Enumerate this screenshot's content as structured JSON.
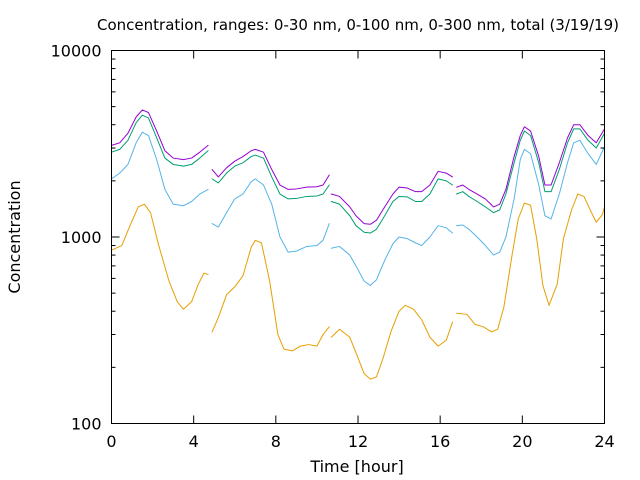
{
  "chart_data": {
    "type": "line",
    "title": "Concentration, ranges: 0-30 nm, 0-100 nm, 0-300 nm, total (3/19/19)",
    "xlabel": "Time [hour]",
    "ylabel": "Concentration",
    "xlim": [
      0,
      24
    ],
    "ylim": [
      100,
      10000
    ],
    "yscale": "log",
    "grid": false,
    "legend": "none",
    "x_ticks": [
      0,
      4,
      8,
      12,
      16,
      20,
      24
    ],
    "x_tick_labels": [
      "0",
      "4",
      "8",
      "12",
      "16",
      "20",
      "24"
    ],
    "y_ticks": [
      100,
      1000,
      10000
    ],
    "y_tick_labels": [
      "100",
      "1000",
      "10000"
    ],
    "series": [
      {
        "color": "#e69f00",
        "segments": [
          [
            [
              0,
              850
            ],
            [
              0.5,
              900
            ],
            [
              0.9,
              1150
            ],
            [
              1.3,
              1450
            ],
            [
              1.6,
              1500
            ],
            [
              1.9,
              1350
            ],
            [
              2.3,
              900
            ],
            [
              2.8,
              580
            ],
            [
              3.2,
              450
            ],
            [
              3.5,
              410
            ],
            [
              3.9,
              450
            ],
            [
              4.2,
              550
            ],
            [
              4.5,
              640
            ],
            [
              4.7,
              630
            ]
          ],
          [
            [
              4.9,
              310
            ],
            [
              5.2,
              370
            ],
            [
              5.6,
              490
            ],
            [
              6.0,
              540
            ],
            [
              6.4,
              620
            ],
            [
              6.8,
              880
            ],
            [
              7.0,
              960
            ],
            [
              7.3,
              930
            ],
            [
              7.7,
              580
            ],
            [
              8.1,
              300
            ],
            [
              8.4,
              250
            ],
            [
              8.8,
              245
            ],
            [
              9.2,
              260
            ],
            [
              9.6,
              265
            ],
            [
              10.0,
              260
            ],
            [
              10.3,
              300
            ],
            [
              10.6,
              330
            ]
          ],
          [
            [
              10.7,
              290
            ],
            [
              11.1,
              320
            ],
            [
              11.6,
              290
            ],
            [
              11.9,
              240
            ],
            [
              12.3,
              185
            ],
            [
              12.6,
              173
            ],
            [
              12.9,
              178
            ],
            [
              13.2,
              220
            ],
            [
              13.6,
              310
            ],
            [
              14.0,
              400
            ],
            [
              14.3,
              430
            ],
            [
              14.7,
              410
            ],
            [
              15.1,
              360
            ],
            [
              15.5,
              290
            ],
            [
              15.9,
              260
            ],
            [
              16.3,
              280
            ],
            [
              16.6,
              350
            ]
          ],
          [
            [
              16.8,
              390
            ],
            [
              17.3,
              385
            ],
            [
              17.7,
              340
            ],
            [
              18.1,
              330
            ],
            [
              18.5,
              310
            ],
            [
              18.8,
              320
            ],
            [
              19.1,
              420
            ],
            [
              19.5,
              800
            ],
            [
              19.8,
              1250
            ],
            [
              20.1,
              1520
            ],
            [
              20.4,
              1480
            ],
            [
              20.7,
              980
            ],
            [
              21.0,
              550
            ],
            [
              21.3,
              430
            ],
            [
              21.7,
              560
            ],
            [
              22.0,
              980
            ],
            [
              22.4,
              1400
            ],
            [
              22.7,
              1700
            ],
            [
              23.0,
              1650
            ],
            [
              23.3,
              1400
            ],
            [
              23.6,
              1200
            ],
            [
              23.9,
              1320
            ],
            [
              24.0,
              1450
            ]
          ]
        ]
      },
      {
        "color": "#56b4e9",
        "segments": [
          [
            [
              0,
              2050
            ],
            [
              0.4,
              2200
            ],
            [
              0.8,
              2450
            ],
            [
              1.2,
              3200
            ],
            [
              1.5,
              3650
            ],
            [
              1.8,
              3500
            ],
            [
              2.2,
              2600
            ],
            [
              2.6,
              1800
            ],
            [
              3.0,
              1500
            ],
            [
              3.5,
              1470
            ],
            [
              3.9,
              1550
            ],
            [
              4.3,
              1700
            ],
            [
              4.7,
              1800
            ]
          ],
          [
            [
              4.9,
              1180
            ],
            [
              5.2,
              1130
            ],
            [
              5.6,
              1350
            ],
            [
              6.0,
              1600
            ],
            [
              6.4,
              1700
            ],
            [
              6.8,
              1980
            ],
            [
              7.0,
              2050
            ],
            [
              7.4,
              1900
            ],
            [
              7.8,
              1500
            ],
            [
              8.2,
              1000
            ],
            [
              8.6,
              830
            ],
            [
              9.0,
              840
            ],
            [
              9.5,
              890
            ],
            [
              10.0,
              900
            ],
            [
              10.3,
              960
            ],
            [
              10.6,
              1180
            ]
          ],
          [
            [
              10.7,
              870
            ],
            [
              11.1,
              890
            ],
            [
              11.6,
              800
            ],
            [
              11.9,
              700
            ],
            [
              12.3,
              580
            ],
            [
              12.6,
              550
            ],
            [
              12.9,
              590
            ],
            [
              13.3,
              750
            ],
            [
              13.7,
              920
            ],
            [
              14.0,
              1000
            ],
            [
              14.4,
              980
            ],
            [
              14.8,
              930
            ],
            [
              15.1,
              900
            ],
            [
              15.5,
              1000
            ],
            [
              15.9,
              1150
            ],
            [
              16.3,
              1120
            ],
            [
              16.6,
              1050
            ]
          ],
          [
            [
              16.8,
              1150
            ],
            [
              17.1,
              1160
            ],
            [
              17.4,
              1100
            ],
            [
              17.8,
              1000
            ],
            [
              18.2,
              900
            ],
            [
              18.6,
              800
            ],
            [
              18.9,
              830
            ],
            [
              19.2,
              1000
            ],
            [
              19.6,
              1600
            ],
            [
              19.9,
              2600
            ],
            [
              20.1,
              2950
            ],
            [
              20.4,
              2800
            ],
            [
              20.8,
              1900
            ],
            [
              21.1,
              1300
            ],
            [
              21.4,
              1250
            ],
            [
              21.8,
              1700
            ],
            [
              22.2,
              2500
            ],
            [
              22.5,
              3200
            ],
            [
              22.8,
              3300
            ],
            [
              23.2,
              2800
            ],
            [
              23.6,
              2450
            ],
            [
              24.0,
              3050
            ]
          ]
        ]
      },
      {
        "color": "#009e73",
        "segments": [
          [
            [
              0,
              2850
            ],
            [
              0.4,
              2950
            ],
            [
              0.8,
              3300
            ],
            [
              1.2,
              4100
            ],
            [
              1.5,
              4500
            ],
            [
              1.8,
              4350
            ],
            [
              2.2,
              3400
            ],
            [
              2.6,
              2650
            ],
            [
              3.0,
              2450
            ],
            [
              3.5,
              2400
            ],
            [
              3.9,
              2450
            ],
            [
              4.3,
              2650
            ],
            [
              4.7,
              2900
            ]
          ],
          [
            [
              4.9,
              2050
            ],
            [
              5.2,
              1950
            ],
            [
              5.6,
              2200
            ],
            [
              6.0,
              2400
            ],
            [
              6.4,
              2500
            ],
            [
              6.8,
              2700
            ],
            [
              7.0,
              2750
            ],
            [
              7.4,
              2650
            ],
            [
              7.8,
              2100
            ],
            [
              8.2,
              1700
            ],
            [
              8.6,
              1600
            ],
            [
              9.0,
              1610
            ],
            [
              9.5,
              1650
            ],
            [
              10.0,
              1660
            ],
            [
              10.3,
              1700
            ],
            [
              10.6,
              1900
            ]
          ],
          [
            [
              10.7,
              1550
            ],
            [
              11.1,
              1500
            ],
            [
              11.6,
              1300
            ],
            [
              11.9,
              1150
            ],
            [
              12.3,
              1060
            ],
            [
              12.6,
              1050
            ],
            [
              12.9,
              1100
            ],
            [
              13.3,
              1300
            ],
            [
              13.7,
              1550
            ],
            [
              14.0,
              1650
            ],
            [
              14.4,
              1640
            ],
            [
              14.8,
              1550
            ],
            [
              15.1,
              1550
            ],
            [
              15.5,
              1700
            ],
            [
              15.9,
              2050
            ],
            [
              16.3,
              2000
            ],
            [
              16.6,
              1900
            ]
          ],
          [
            [
              16.8,
              1700
            ],
            [
              17.1,
              1750
            ],
            [
              17.4,
              1650
            ],
            [
              17.8,
              1550
            ],
            [
              18.2,
              1450
            ],
            [
              18.6,
              1350
            ],
            [
              18.9,
              1400
            ],
            [
              19.2,
              1700
            ],
            [
              19.6,
              2500
            ],
            [
              19.9,
              3300
            ],
            [
              20.1,
              3700
            ],
            [
              20.4,
              3500
            ],
            [
              20.8,
              2500
            ],
            [
              21.1,
              1750
            ],
            [
              21.4,
              1750
            ],
            [
              21.8,
              2300
            ],
            [
              22.2,
              3200
            ],
            [
              22.5,
              3800
            ],
            [
              22.8,
              3800
            ],
            [
              23.2,
              3300
            ],
            [
              23.6,
              3000
            ],
            [
              24.0,
              3600
            ]
          ]
        ]
      },
      {
        "color": "#9400d3",
        "segments": [
          [
            [
              0,
              3100
            ],
            [
              0.4,
              3200
            ],
            [
              0.8,
              3600
            ],
            [
              1.2,
              4400
            ],
            [
              1.5,
              4800
            ],
            [
              1.8,
              4650
            ],
            [
              2.2,
              3700
            ],
            [
              2.6,
              2900
            ],
            [
              3.0,
              2650
            ],
            [
              3.5,
              2600
            ],
            [
              3.9,
              2650
            ],
            [
              4.3,
              2850
            ],
            [
              4.7,
              3100
            ]
          ],
          [
            [
              4.9,
              2300
            ],
            [
              5.2,
              2100
            ],
            [
              5.6,
              2350
            ],
            [
              6.0,
              2550
            ],
            [
              6.4,
              2700
            ],
            [
              6.8,
              2900
            ],
            [
              7.0,
              2950
            ],
            [
              7.4,
              2850
            ],
            [
              7.8,
              2300
            ],
            [
              8.2,
              1900
            ],
            [
              8.6,
              1800
            ],
            [
              9.0,
              1810
            ],
            [
              9.5,
              1850
            ],
            [
              10.0,
              1860
            ],
            [
              10.3,
              1900
            ],
            [
              10.6,
              2150
            ]
          ],
          [
            [
              10.7,
              1700
            ],
            [
              11.1,
              1650
            ],
            [
              11.6,
              1450
            ],
            [
              11.9,
              1300
            ],
            [
              12.3,
              1180
            ],
            [
              12.6,
              1170
            ],
            [
              12.9,
              1230
            ],
            [
              13.3,
              1450
            ],
            [
              13.7,
              1700
            ],
            [
              14.0,
              1850
            ],
            [
              14.4,
              1830
            ],
            [
              14.8,
              1750
            ],
            [
              15.1,
              1750
            ],
            [
              15.5,
              1900
            ],
            [
              15.9,
              2250
            ],
            [
              16.3,
              2200
            ],
            [
              16.6,
              2100
            ]
          ],
          [
            [
              16.8,
              1850
            ],
            [
              17.1,
              1900
            ],
            [
              17.4,
              1800
            ],
            [
              17.8,
              1700
            ],
            [
              18.2,
              1600
            ],
            [
              18.6,
              1450
            ],
            [
              18.9,
              1500
            ],
            [
              19.2,
              1800
            ],
            [
              19.6,
              2700
            ],
            [
              19.9,
              3500
            ],
            [
              20.1,
              3900
            ],
            [
              20.4,
              3700
            ],
            [
              20.8,
              2700
            ],
            [
              21.1,
              1900
            ],
            [
              21.4,
              1900
            ],
            [
              21.8,
              2500
            ],
            [
              22.2,
              3400
            ],
            [
              22.5,
              4000
            ],
            [
              22.8,
              4000
            ],
            [
              23.2,
              3500
            ],
            [
              23.6,
              3200
            ],
            [
              24.0,
              3800
            ]
          ]
        ]
      }
    ]
  }
}
